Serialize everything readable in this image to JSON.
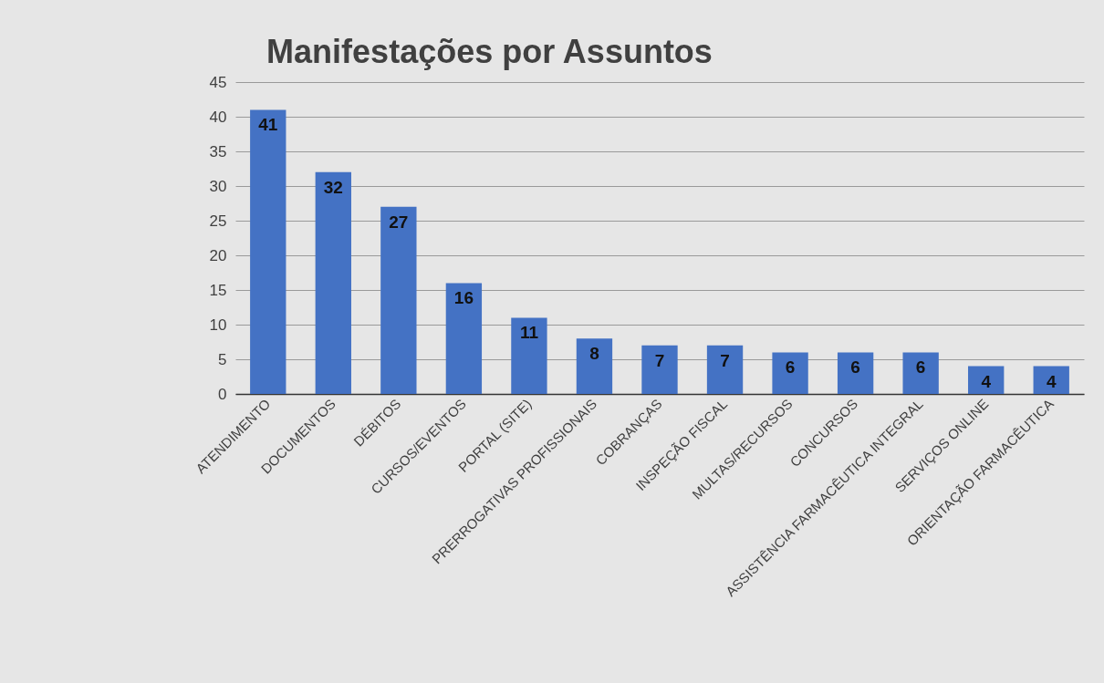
{
  "chart_data": {
    "type": "bar",
    "title": "Manifestações por Assuntos",
    "categories": [
      "ATENDIMENTO",
      "DOCUMENTOS",
      "DÉBITOS",
      "CURSOS/EVENTOS",
      "PORTAL (SITE)",
      "PRERROGATIVAS PROFISSIONAIS",
      "COBRANÇAS",
      "INSPEÇÃO FISCAL",
      "MULTAS/RECURSOS",
      "CONCURSOS",
      "ASSISTÊNCIA FARMACÊUTICA INTEGRAL",
      "SERVIÇOS ONLINE",
      "ORIENTAÇÃO FARMACÊUTICA"
    ],
    "values": [
      41,
      32,
      27,
      16,
      11,
      8,
      7,
      7,
      6,
      6,
      6,
      4,
      4
    ],
    "color": "#4472c4",
    "ylim": [
      0,
      45
    ],
    "yticks": [
      0,
      5,
      10,
      15,
      20,
      25,
      30,
      35,
      40,
      45
    ],
    "grid": "y",
    "data_labels": true
  }
}
